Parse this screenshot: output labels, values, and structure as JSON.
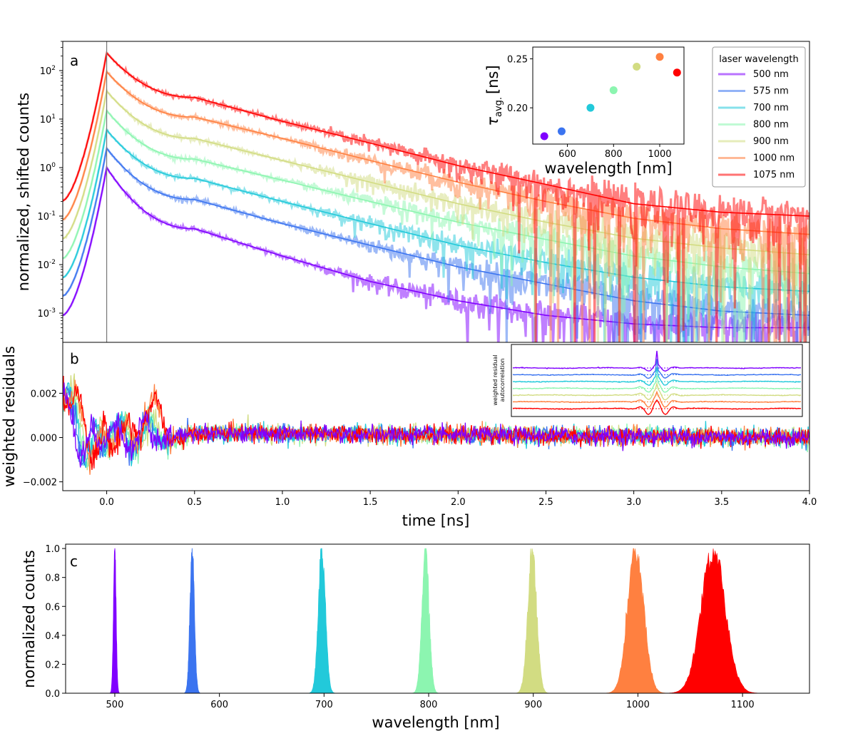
{
  "figure": {
    "panels": [
      "a",
      "b",
      "c"
    ]
  },
  "chart_data": [
    {
      "panel": "a",
      "type": "line",
      "xlabel": "",
      "ylabel": "normalized, shifted counts",
      "yscale": "log",
      "xlim": [
        -0.25,
        4.0
      ],
      "ylim": [
        0.00025,
        400
      ],
      "yticks": [
        0.001,
        0.01,
        0.1,
        1,
        10,
        100
      ],
      "ytick_labels": [
        "10^-3",
        "10^-2",
        "10^-1",
        "10^0",
        "10^1",
        "10^2"
      ],
      "vertical_line_x": 0.0,
      "legend": {
        "title": "laser wavelength",
        "placement": "top-right",
        "entries": [
          "500 nm",
          "575 nm",
          "700 nm",
          "800 nm",
          "900 nm",
          "1000 nm",
          "1075 nm"
        ]
      },
      "series": [
        {
          "name": "500 nm",
          "color": "#8000ff",
          "peak": 1.0,
          "floor": 0.0005,
          "tail_x": [
            0.5,
            1.0,
            1.5,
            2.0,
            2.5,
            3.0,
            3.5,
            4.0
          ],
          "tail_y": [
            0.055,
            0.015,
            0.0045,
            0.0018,
            0.0009,
            0.0006,
            0.0005,
            0.0005
          ]
        },
        {
          "name": "575 nm",
          "color": "#3b74f0",
          "peak": 2.5,
          "floor": 0.0009,
          "tail_x": [
            0.5,
            1.0,
            1.5,
            2.0,
            2.5,
            3.0,
            3.5,
            4.0
          ],
          "tail_y": [
            0.22,
            0.07,
            0.025,
            0.009,
            0.004,
            0.0018,
            0.0011,
            0.0009
          ]
        },
        {
          "name": "700 nm",
          "color": "#22c9da",
          "peak": 6.0,
          "floor": 0.0028,
          "tail_x": [
            0.5,
            1.0,
            1.5,
            2.0,
            2.5,
            3.0,
            3.5,
            4.0
          ],
          "tail_y": [
            0.6,
            0.2,
            0.07,
            0.025,
            0.011,
            0.0055,
            0.0035,
            0.0028
          ]
        },
        {
          "name": "800 nm",
          "color": "#8cf5b0",
          "peak": 15.0,
          "floor": 0.0065,
          "tail_x": [
            0.5,
            1.0,
            1.5,
            2.0,
            2.5,
            3.0,
            3.5,
            4.0
          ],
          "tail_y": [
            1.5,
            0.55,
            0.2,
            0.075,
            0.033,
            0.015,
            0.009,
            0.0065
          ]
        },
        {
          "name": "900 nm",
          "color": "#d2dc82",
          "peak": 38.0,
          "floor": 0.016,
          "tail_x": [
            0.5,
            1.0,
            1.5,
            2.0,
            2.5,
            3.0,
            3.5,
            4.0
          ],
          "tail_y": [
            4.0,
            1.4,
            0.5,
            0.18,
            0.075,
            0.035,
            0.022,
            0.016
          ]
        },
        {
          "name": "1000 nm",
          "color": "#ff8040",
          "peak": 95.0,
          "floor": 0.042,
          "tail_x": [
            0.5,
            1.0,
            1.5,
            2.0,
            2.5,
            3.0,
            3.5,
            4.0
          ],
          "tail_y": [
            11.0,
            4.0,
            1.4,
            0.5,
            0.2,
            0.09,
            0.055,
            0.042
          ]
        },
        {
          "name": "1075 nm",
          "color": "#ff0000",
          "peak": 230.0,
          "floor": 0.1,
          "tail_x": [
            0.5,
            1.0,
            1.5,
            2.0,
            2.5,
            3.0,
            3.5,
            4.0
          ],
          "tail_y": [
            28.0,
            9.0,
            3.2,
            1.1,
            0.45,
            0.18,
            0.12,
            0.1
          ]
        }
      ],
      "inset": {
        "type": "scatter",
        "xlabel": "wavelength [nm]",
        "ylabel": "τ_avg. [ns]",
        "ylabel_main": "τ",
        "ylabel_sub": "avg.",
        "ylabel_unit": "[ns]",
        "xlim": [
          450,
          1105
        ],
        "ylim": [
          0.163,
          0.262
        ],
        "xticks": [
          600,
          800,
          1000
        ],
        "yticks": [
          0.2,
          0.25
        ],
        "ytick_labels": [
          "0.20",
          "0.25"
        ],
        "x": [
          500,
          575,
          700,
          800,
          900,
          1000,
          1075
        ],
        "y": [
          0.171,
          0.176,
          0.2,
          0.218,
          0.242,
          0.252,
          0.236
        ]
      }
    },
    {
      "panel": "b",
      "type": "line",
      "xlabel": "time [ns]",
      "ylabel": "weighted residuals",
      "xlim": [
        -0.25,
        4.0
      ],
      "ylim": [
        -0.0024,
        0.0043
      ],
      "xticks": [
        0.0,
        0.5,
        1.0,
        1.5,
        2.0,
        2.5,
        3.0,
        3.5,
        4.0
      ],
      "xtick_labels": [
        "0.0",
        "0.5",
        "1.0",
        "1.5",
        "2.0",
        "2.5",
        "3.0",
        "3.5",
        "4.0"
      ],
      "yticks": [
        -0.002,
        0.0,
        0.002
      ],
      "ytick_labels": [
        "−0.002",
        "0.000",
        "0.002"
      ],
      "noise_amplitude": 0.0002,
      "transient": {
        "x": [
          -0.25,
          -0.2,
          -0.15,
          -0.12,
          -0.08,
          -0.05,
          0.0,
          0.05,
          0.1,
          0.15,
          0.2,
          0.25,
          0.3,
          0.35,
          0.4,
          0.5,
          4.0
        ],
        "y": [
          0.0015,
          0.0022,
          0.0005,
          -0.0012,
          -0.0004,
          0.0007,
          -0.0007,
          0.0004,
          0.0008,
          -0.0006,
          -0.0002,
          0.001,
          -0.0001,
          -0.0003,
          0.0,
          0.0002,
          0.0
        ]
      },
      "inset": {
        "ylabel": "weighted residual autocorrelation",
        "ylabel_line1": "weighted residual",
        "ylabel_line2": "autocorrelation",
        "series_colors": [
          "#8000ff",
          "#3b74f0",
          "#22c9da",
          "#8cf5b0",
          "#d2dc82",
          "#ff8040",
          "#ff0000"
        ]
      }
    },
    {
      "panel": "c",
      "type": "area",
      "xlabel": "wavelength [nm]",
      "ylabel": "normalized counts",
      "xlim": [
        453,
        1164
      ],
      "ylim": [
        0.0,
        1.03
      ],
      "xticks": [
        500,
        600,
        700,
        800,
        900,
        1000,
        1100
      ],
      "yticks": [
        0.0,
        0.2,
        0.4,
        0.6,
        0.8,
        1.0
      ],
      "ytick_labels": [
        "0.0",
        "0.2",
        "0.4",
        "0.6",
        "0.8",
        "1.0"
      ],
      "peaks": [
        {
          "center": 500,
          "fwhm": 3,
          "height": 1.0,
          "color": "#8000ff"
        },
        {
          "center": 574,
          "fwhm": 5,
          "height": 1.0,
          "color": "#3b74f0"
        },
        {
          "center": 698,
          "fwhm": 8,
          "height": 1.0,
          "color": "#22c9da"
        },
        {
          "center": 797,
          "fwhm": 8,
          "height": 1.0,
          "color": "#8cf5b0"
        },
        {
          "center": 899,
          "fwhm": 10,
          "height": 1.0,
          "color": "#d2dc82"
        },
        {
          "center": 998,
          "fwhm": 18,
          "height": 1.0,
          "color": "#ff8040"
        },
        {
          "center": 1072,
          "fwhm": 27,
          "height": 1.0,
          "color": "#ff0000"
        }
      ]
    }
  ]
}
